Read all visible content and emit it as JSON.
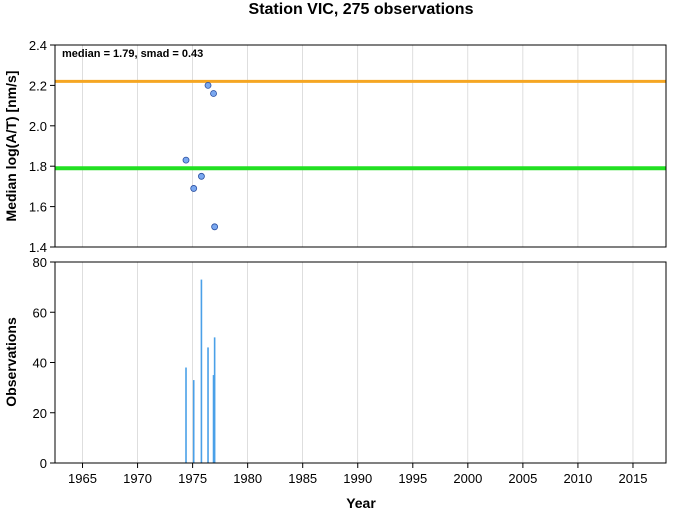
{
  "title": "Station VIC, 275 observations",
  "annotation": "median = 1.79, smad = 0.43",
  "colors": {
    "median_line": "#22e022",
    "upper_line": "#f5a623",
    "point_fill": "#7aa8f0",
    "point_stroke": "#2a4fa0",
    "bar": "#4aa0e8"
  },
  "chart_data": [
    {
      "type": "scatter",
      "ylabel": "Median log(A/T) [nm/s]",
      "xlim": [
        1962.5,
        2018
      ],
      "ylim": [
        1.4,
        2.4
      ],
      "yticks": [
        1.4,
        1.6,
        1.8,
        2.0,
        2.2,
        2.4
      ],
      "ytick_labels": [
        "1.4",
        "1.6",
        "1.8",
        "2.0",
        "2.2",
        "2.4"
      ],
      "hlines": [
        {
          "name": "median",
          "y": 1.79
        },
        {
          "name": "median + smad",
          "y": 2.22
        }
      ],
      "points": [
        {
          "x": 1974.4,
          "y": 1.83
        },
        {
          "x": 1975.1,
          "y": 1.69
        },
        {
          "x": 1975.8,
          "y": 1.75
        },
        {
          "x": 1976.4,
          "y": 2.2
        },
        {
          "x": 1976.9,
          "y": 2.16
        },
        {
          "x": 1977.0,
          "y": 1.5
        }
      ]
    },
    {
      "type": "bar",
      "xlabel": "Year",
      "ylabel": "Observations",
      "xlim": [
        1962.5,
        2018
      ],
      "ylim": [
        0,
        80
      ],
      "yticks": [
        0,
        20,
        40,
        60,
        80
      ],
      "ytick_labels": [
        "0",
        "20",
        "40",
        "60",
        "80"
      ],
      "xticks": [
        1965,
        1970,
        1975,
        1980,
        1985,
        1990,
        1995,
        2000,
        2005,
        2010,
        2015
      ],
      "xtick_labels": [
        "1965",
        "1970",
        "1975",
        "1980",
        "1985",
        "1990",
        "1995",
        "2000",
        "2005",
        "2010",
        "2015"
      ],
      "bars": [
        {
          "x": 1974.4,
          "y": 38
        },
        {
          "x": 1975.1,
          "y": 33
        },
        {
          "x": 1975.8,
          "y": 73
        },
        {
          "x": 1976.4,
          "y": 46
        },
        {
          "x": 1976.9,
          "y": 35
        },
        {
          "x": 1977.0,
          "y": 50
        }
      ]
    }
  ]
}
